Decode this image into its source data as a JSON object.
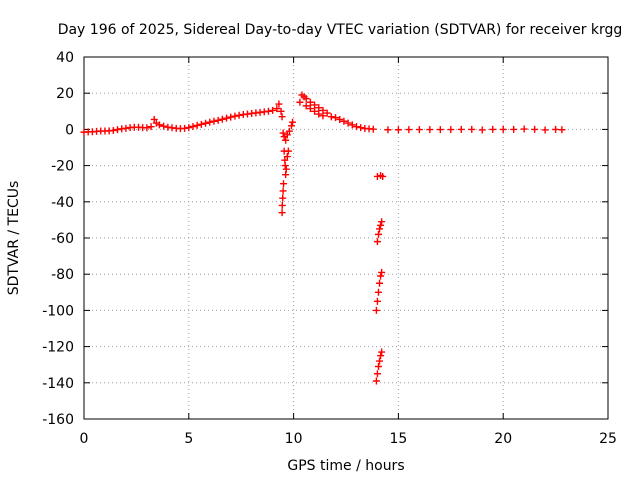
{
  "chart_data": {
    "type": "scatter",
    "title": "Day 196 of 2025, Sidereal Day-to-day VTEC variation (SDTVAR) for receiver krgg",
    "xlabel": "GPS time / hours",
    "ylabel": "SDTVAR / TECUs",
    "xlim": [
      0,
      25
    ],
    "ylim": [
      -160,
      40
    ],
    "xticks": [
      0,
      5,
      10,
      15,
      20,
      25
    ],
    "yticks": [
      40,
      20,
      0,
      -20,
      -40,
      -60,
      -80,
      -100,
      -120,
      -140,
      -160
    ],
    "grid": true,
    "marker": "plus",
    "series_color": "#ff0000",
    "series": [
      {
        "name": "SDTVAR",
        "points": [
          [
            0.0,
            -1.5
          ],
          [
            0.2,
            -1.4
          ],
          [
            0.4,
            -1.3
          ],
          [
            0.6,
            -1.1
          ],
          [
            0.8,
            -0.9
          ],
          [
            1.0,
            -0.9
          ],
          [
            1.2,
            -0.8
          ],
          [
            1.4,
            -0.6
          ],
          [
            1.6,
            -0.1
          ],
          [
            1.8,
            0.3
          ],
          [
            2.0,
            0.6
          ],
          [
            2.2,
            1.0
          ],
          [
            2.4,
            1.2
          ],
          [
            2.6,
            1.2
          ],
          [
            2.8,
            1.0
          ],
          [
            3.0,
            0.9
          ],
          [
            3.2,
            1.5
          ],
          [
            3.35,
            5.5
          ],
          [
            3.45,
            3.5
          ],
          [
            3.6,
            2.5
          ],
          [
            3.8,
            1.8
          ],
          [
            4.0,
            1.2
          ],
          [
            4.2,
            0.9
          ],
          [
            4.4,
            0.6
          ],
          [
            4.6,
            0.4
          ],
          [
            4.8,
            0.6
          ],
          [
            5.0,
            1.0
          ],
          [
            5.2,
            1.6
          ],
          [
            5.4,
            2.2
          ],
          [
            5.6,
            2.8
          ],
          [
            5.8,
            3.4
          ],
          [
            6.0,
            4.0
          ],
          [
            6.2,
            4.5
          ],
          [
            6.4,
            5.0
          ],
          [
            6.6,
            5.6
          ],
          [
            6.8,
            6.2
          ],
          [
            7.0,
            6.8
          ],
          [
            7.2,
            7.3
          ],
          [
            7.4,
            7.8
          ],
          [
            7.6,
            8.2
          ],
          [
            7.8,
            8.5
          ],
          [
            8.0,
            8.8
          ],
          [
            8.2,
            9.1
          ],
          [
            8.4,
            9.4
          ],
          [
            8.6,
            9.7
          ],
          [
            8.8,
            10.0
          ],
          [
            9.0,
            10.5
          ],
          [
            9.2,
            11.5
          ],
          [
            9.3,
            14.0
          ],
          [
            9.4,
            10.0
          ],
          [
            9.45,
            7.0
          ],
          [
            9.5,
            -2.0
          ],
          [
            9.55,
            -4.0
          ],
          [
            9.62,
            -6.0
          ],
          [
            9.7,
            -3.0
          ],
          [
            9.8,
            -1.0
          ],
          [
            9.9,
            2.0
          ],
          [
            9.95,
            4.0
          ],
          [
            9.55,
            -12.0
          ],
          [
            9.58,
            -17.0
          ],
          [
            9.6,
            -20.0
          ],
          [
            9.62,
            -25.0
          ],
          [
            9.52,
            -30.0
          ],
          [
            9.5,
            -34.0
          ],
          [
            9.48,
            -38.0
          ],
          [
            9.46,
            -42.0
          ],
          [
            9.45,
            -46.0
          ],
          [
            9.65,
            -22.0
          ],
          [
            9.7,
            -15.0
          ],
          [
            9.75,
            -12.0
          ],
          [
            10.3,
            15.0
          ],
          [
            10.4,
            19.0
          ],
          [
            10.5,
            18.0
          ],
          [
            10.6,
            17.0
          ],
          [
            10.8,
            15.0
          ],
          [
            11.0,
            13.5
          ],
          [
            11.2,
            12.0
          ],
          [
            11.4,
            10.5
          ],
          [
            11.6,
            9.0
          ],
          [
            11.8,
            7.0
          ],
          [
            10.6,
            13.0
          ],
          [
            10.8,
            11.5
          ],
          [
            11.0,
            10.0
          ],
          [
            11.2,
            8.5
          ],
          [
            11.4,
            7.5
          ],
          [
            12.0,
            6.5
          ],
          [
            12.2,
            5.5
          ],
          [
            12.4,
            4.5
          ],
          [
            12.6,
            3.5
          ],
          [
            12.8,
            2.5
          ],
          [
            13.0,
            1.5
          ],
          [
            13.2,
            1.0
          ],
          [
            13.4,
            0.5
          ],
          [
            13.6,
            0.3
          ],
          [
            13.8,
            0.1
          ],
          [
            14.0,
            -26.0
          ],
          [
            14.15,
            -25.5
          ],
          [
            14.25,
            -26.0
          ],
          [
            14.0,
            -62.0
          ],
          [
            14.05,
            -58.0
          ],
          [
            14.1,
            -55.0
          ],
          [
            14.15,
            -53.0
          ],
          [
            14.2,
            -51.0
          ],
          [
            13.95,
            -100.0
          ],
          [
            14.0,
            -95.0
          ],
          [
            14.05,
            -90.0
          ],
          [
            14.1,
            -85.0
          ],
          [
            14.15,
            -81.0
          ],
          [
            14.2,
            -79.0
          ],
          [
            13.95,
            -139.0
          ],
          [
            14.0,
            -135.0
          ],
          [
            14.05,
            -131.0
          ],
          [
            14.1,
            -128.0
          ],
          [
            14.15,
            -125.0
          ],
          [
            14.2,
            -123.0
          ],
          [
            14.5,
            -0.2
          ],
          [
            15.0,
            -0.2
          ],
          [
            15.5,
            -0.1
          ],
          [
            16.0,
            -0.1
          ],
          [
            16.5,
            -0.1
          ],
          [
            17.0,
            -0.1
          ],
          [
            17.5,
            -0.1
          ],
          [
            18.0,
            0.0
          ],
          [
            18.5,
            0.0
          ],
          [
            19.0,
            -0.3
          ],
          [
            19.5,
            0.0
          ],
          [
            20.0,
            0.0
          ],
          [
            20.5,
            0.0
          ],
          [
            21.0,
            0.2
          ],
          [
            21.5,
            0.0
          ],
          [
            22.0,
            -0.3
          ],
          [
            22.5,
            0.0
          ],
          [
            22.8,
            -0.2
          ]
        ]
      }
    ]
  }
}
